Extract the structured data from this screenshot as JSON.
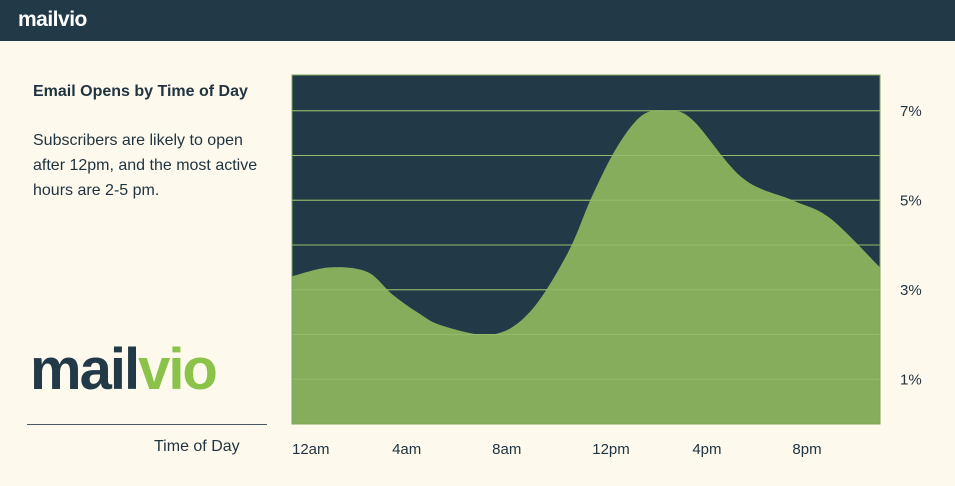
{
  "header": {
    "brand": "mailvio"
  },
  "panel": {
    "title": "Email Opens by Time of Day",
    "description": "Subscribers are likely to open after 12pm, and the most active hours are 2-5 pm.",
    "logo_text_main": "mail",
    "logo_text_accent": "vio"
  },
  "colors": {
    "header_bg": "#223a47",
    "page_bg": "#fdf9ec",
    "chart_bg": "#223a47",
    "area_fill": "#86ad5c",
    "grid": "#7fa85a",
    "accent": "#8bc34a"
  },
  "chart_data": {
    "type": "area",
    "title": "Email Opens by Time of Day",
    "xlabel": "Time of Day",
    "ylabel": "",
    "x_ticks": [
      "12am",
      "4am",
      "8am",
      "12pm",
      "4pm",
      "8pm"
    ],
    "y_ticks": [
      "1%",
      "3%",
      "5%",
      "7%"
    ],
    "y_tick_values": [
      1,
      3,
      5,
      7
    ],
    "ylim": [
      0,
      7.8
    ],
    "xlim": [
      0,
      23.5
    ],
    "grid": true,
    "y_axis_side": "right",
    "series": [
      {
        "x": [
          0,
          1.5,
          3,
          4,
          5,
          6,
          8,
          9.5,
          11,
          12,
          13,
          14,
          15,
          16,
          18,
          20,
          21.5,
          23.5
        ],
        "values": [
          3.3,
          3.5,
          3.4,
          2.9,
          2.5,
          2.2,
          2.0,
          2.5,
          3.8,
          5.1,
          6.2,
          6.9,
          7.0,
          6.8,
          5.5,
          5.0,
          4.6,
          3.5
        ]
      }
    ]
  }
}
